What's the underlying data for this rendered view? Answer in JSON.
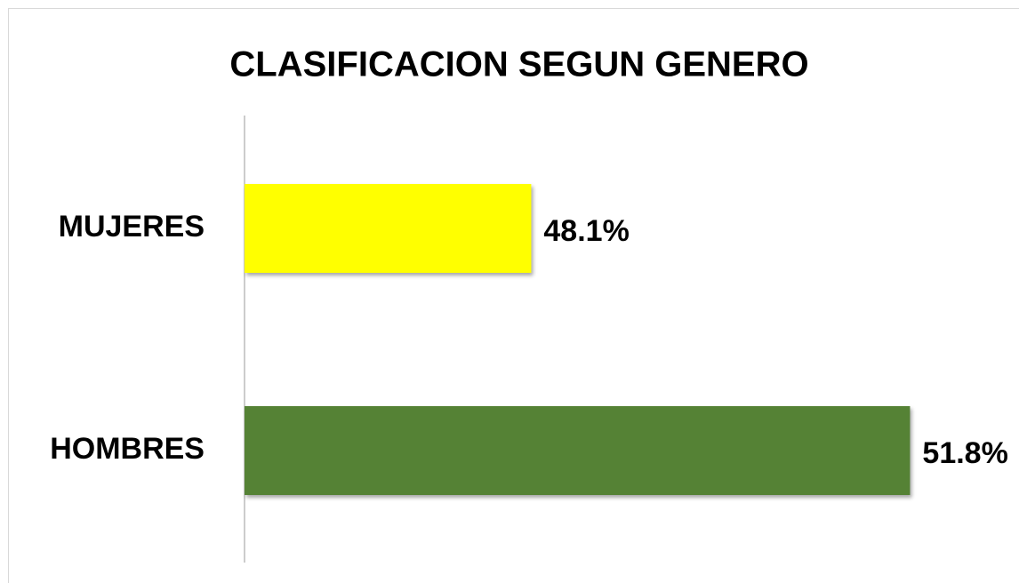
{
  "chart_data": {
    "type": "hbar",
    "title": "CLASIFICACION SEGUN GENERO",
    "categories": [
      "MUJERES",
      "HOMBRES"
    ],
    "values": [
      48.1,
      51.8
    ],
    "value_labels": [
      "48.1%",
      "51.8%"
    ],
    "colors": [
      "#ffff00",
      "#548235"
    ],
    "xlim": [
      45.3,
      52.3
    ]
  }
}
